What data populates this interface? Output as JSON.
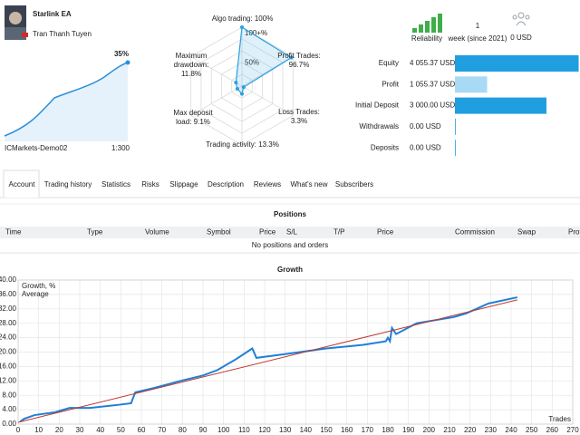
{
  "header": {
    "title": "Starlink EA",
    "author": "Tran Thanh Tuyen",
    "growth": "35%",
    "broker": "ICMarkets-Demo02",
    "leverage": "1:300"
  },
  "radar": {
    "axes": [
      {
        "name": "Algo trading:",
        "value": 100,
        "value_label": "100%"
      },
      {
        "name": "Profit Trades:",
        "value": 96.7,
        "value_label": "96.7%"
      },
      {
        "name": "Loss Trades:",
        "value": 3.3,
        "value_label": "3.3%"
      },
      {
        "name": "Trading activity:",
        "value": 13.3,
        "value_label": "13.3%"
      },
      {
        "name": "Max deposit load:",
        "value": 9.1,
        "value_label": "9.1%"
      },
      {
        "name": "Maximum drawdown:",
        "value": 11.8,
        "value_label": "11.8%"
      }
    ],
    "scale": [
      {
        "value": 50,
        "label": "50%"
      },
      {
        "value": 100,
        "label": "100+%"
      }
    ]
  },
  "summary": {
    "reliability": "Reliability",
    "weeks": "1",
    "weeks_label": "week (since 2021)",
    "subscribers": "0 USD"
  },
  "balance": {
    "xlim": [
      0,
      4100
    ],
    "rows": [
      {
        "label": "Equity",
        "value": 4055.37,
        "value_label": "4 055.37 USD"
      },
      {
        "label": "Profit",
        "value": 1055.37,
        "value_label": "1 055.37 USD"
      },
      {
        "label": "Initial Deposit",
        "value": 3000,
        "value_label": "3 000.00 USD"
      },
      {
        "label": "Withdrawals",
        "value": 0,
        "value_label": "0.00 USD"
      },
      {
        "label": "Deposits",
        "value": 0,
        "value_label": "0.00 USD"
      }
    ]
  },
  "tabs": [
    "Account",
    "Trading history",
    "Statistics",
    "Risks",
    "Slippage",
    "Description",
    "Reviews",
    "What's new",
    "Subscribers"
  ],
  "positions": {
    "title": "Positions",
    "columns": [
      "Time",
      "Type",
      "Volume",
      "Symbol",
      "Price",
      "S/L",
      "T/P",
      "Price",
      "Commission",
      "Swap",
      "Profi"
    ],
    "empty": "No positions and orders"
  },
  "chart_data": {
    "type": "line",
    "title": "Growth",
    "x_label": "Trades",
    "xlim": [
      0,
      270
    ],
    "ylim": [
      0,
      40
    ],
    "xticks": [
      0,
      10,
      20,
      30,
      40,
      50,
      60,
      70,
      80,
      90,
      100,
      110,
      120,
      130,
      140,
      150,
      160,
      170,
      180,
      190,
      200,
      210,
      220,
      230,
      240,
      250,
      260,
      270
    ],
    "yticks": [
      {
        "value": 0,
        "label": "0.00"
      },
      {
        "value": 4,
        "label": "4.00"
      },
      {
        "value": 8,
        "label": "8.00"
      },
      {
        "value": 12,
        "label": "12.00"
      },
      {
        "value": 16,
        "label": "16.00"
      },
      {
        "value": 20,
        "label": "20.00"
      },
      {
        "value": 24,
        "label": "24.00"
      },
      {
        "value": 28,
        "label": "28.00"
      },
      {
        "value": 32,
        "label": "32.00"
      },
      {
        "value": 36,
        "label": "36.00"
      },
      {
        "value": 40,
        "label": "40.00"
      }
    ],
    "grid": true,
    "series": [
      {
        "name": "Growth, %",
        "color": "#1e7fd8",
        "x": [
          1,
          3,
          8,
          18,
          25,
          35,
          48,
          55,
          57,
          66,
          79,
          90,
          97,
          106,
          114,
          116,
          132,
          150,
          168,
          179,
          180,
          181,
          182,
          184,
          194,
          212,
          218,
          229,
          243
        ],
        "values": [
          0.7,
          1.5,
          2.5,
          3.3,
          4.5,
          4.5,
          5.3,
          5.8,
          8.8,
          10,
          12,
          13.5,
          15,
          18,
          21,
          18.4,
          19.6,
          21,
          22,
          23,
          24,
          23,
          26.7,
          25,
          28,
          29.7,
          30.7,
          33.5,
          35.2
        ]
      },
      {
        "name": "Average",
        "color": "#c0392b",
        "x": [
          0,
          243
        ],
        "values": [
          0.5,
          34.5
        ]
      }
    ]
  }
}
